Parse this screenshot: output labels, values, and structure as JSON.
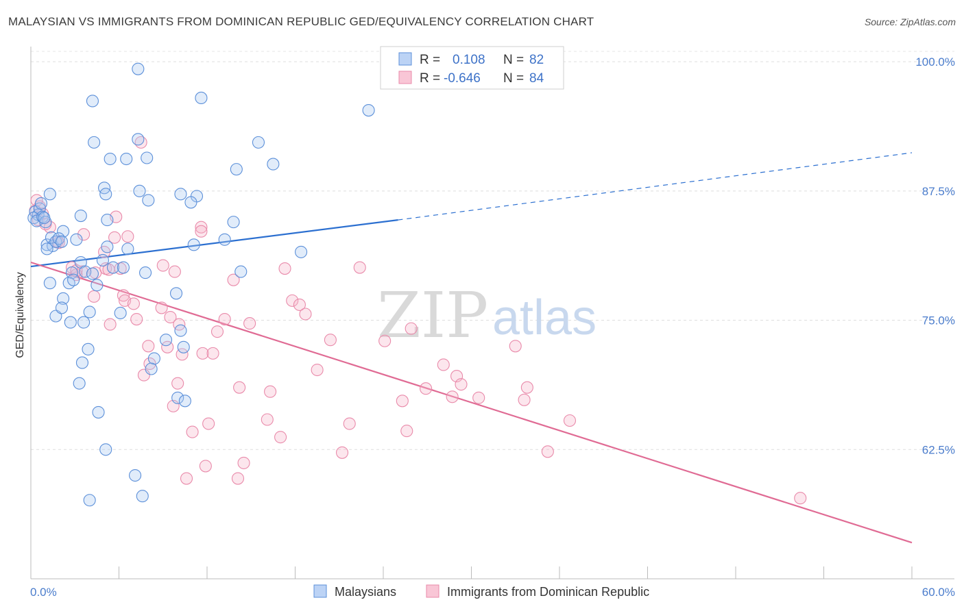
{
  "title": "MALAYSIAN VS IMMIGRANTS FROM DOMINICAN REPUBLIC GED/EQUIVALENCY CORRELATION CHART",
  "source": "Source: ZipAtlas.com",
  "watermark": {
    "part1": "ZIP",
    "part2": "atlas"
  },
  "colors": {
    "blue": "#5b8fd9",
    "blue_line": "#2b6fd0",
    "pink": "#e98aaa",
    "pink_line": "#e06b94",
    "tick": "#4a7ccc"
  },
  "legend": {
    "rows": [
      {
        "r_label": "R =",
        "r_value": "0.108",
        "n_label": "N =",
        "n_value": "82"
      },
      {
        "r_label": "R =",
        "r_value": "-0.646",
        "n_label": "N =",
        "n_value": "84"
      }
    ]
  },
  "bottom_legend": [
    "Malaysians",
    "Immigrants from Dominican Republic"
  ],
  "chart_data": {
    "type": "scatter",
    "title": "MALAYSIAN VS IMMIGRANTS FROM DOMINICAN REPUBLIC GED/EQUIVALENCY CORRELATION CHART",
    "xlabel": "",
    "ylabel": "GED/Equivalency",
    "xlim": [
      0,
      60
    ],
    "ylim": [
      50,
      101
    ],
    "x_tick_labels": [
      "0.0%",
      "60.0%"
    ],
    "y_ticks": [
      62.5,
      75.0,
      87.5,
      100.0
    ],
    "y_tick_labels": [
      "62.5%",
      "75.0%",
      "87.5%",
      "100.0%"
    ],
    "grid": true,
    "legend_position": "top-center",
    "series": [
      {
        "name": "Malaysians",
        "R": 0.108,
        "N": 82,
        "trend": {
          "x0": 0,
          "y0": 80.2,
          "x1": 25,
          "y1": 84.7,
          "dashed_to_x": 60,
          "dashed_to_y": 91.2
        },
        "points": [
          [
            0.3,
            85.5
          ],
          [
            0.5,
            85.2
          ],
          [
            0.2,
            84.9
          ],
          [
            0.6,
            85.8
          ],
          [
            0.4,
            84.6
          ],
          [
            0.8,
            85.0
          ],
          [
            1.0,
            84.5
          ],
          [
            0.9,
            84.9
          ],
          [
            0.7,
            86.3
          ],
          [
            1.3,
            87.2
          ],
          [
            1.1,
            82.3
          ],
          [
            1.5,
            82.2
          ],
          [
            2.2,
            83.6
          ],
          [
            1.4,
            83.0
          ],
          [
            1.7,
            82.6
          ],
          [
            3.1,
            82.8
          ],
          [
            5.2,
            82.1
          ],
          [
            6.6,
            81.9
          ],
          [
            3.4,
            80.6
          ],
          [
            4.9,
            80.8
          ],
          [
            3.7,
            79.7
          ],
          [
            2.8,
            79.6
          ],
          [
            4.2,
            79.5
          ],
          [
            5.6,
            80.1
          ],
          [
            6.3,
            80.1
          ],
          [
            7.8,
            79.6
          ],
          [
            1.3,
            78.6
          ],
          [
            2.6,
            78.6
          ],
          [
            2.9,
            78.9
          ],
          [
            4.5,
            78.4
          ],
          [
            2.2,
            77.1
          ],
          [
            6.1,
            75.7
          ],
          [
            9.9,
            77.6
          ],
          [
            4.0,
            75.8
          ],
          [
            3.6,
            74.8
          ],
          [
            2.7,
            74.8
          ],
          [
            1.7,
            75.4
          ],
          [
            2.1,
            76.2
          ],
          [
            3.9,
            72.2
          ],
          [
            9.2,
            73.1
          ],
          [
            10.2,
            74.0
          ],
          [
            10.4,
            72.4
          ],
          [
            8.4,
            71.3
          ],
          [
            8.2,
            70.3
          ],
          [
            3.5,
            70.9
          ],
          [
            1.1,
            81.9
          ],
          [
            3.3,
            68.9
          ],
          [
            4.6,
            66.1
          ],
          [
            10.0,
            67.5
          ],
          [
            10.5,
            67.2
          ],
          [
            5.1,
            62.5
          ],
          [
            7.1,
            60.0
          ],
          [
            7.6,
            58.0
          ],
          [
            4.0,
            57.6
          ],
          [
            7.3,
            99.3
          ],
          [
            11.6,
            96.5
          ],
          [
            4.2,
            96.2
          ],
          [
            23.0,
            95.3
          ],
          [
            4.3,
            92.2
          ],
          [
            7.3,
            92.5
          ],
          [
            15.5,
            92.2
          ],
          [
            5.4,
            90.6
          ],
          [
            7.9,
            90.7
          ],
          [
            6.5,
            90.6
          ],
          [
            16.5,
            90.1
          ],
          [
            14.0,
            89.6
          ],
          [
            5.0,
            87.8
          ],
          [
            7.4,
            87.5
          ],
          [
            5.1,
            87.2
          ],
          [
            10.2,
            87.2
          ],
          [
            11.3,
            87.0
          ],
          [
            8.0,
            86.6
          ],
          [
            10.9,
            86.4
          ],
          [
            13.8,
            84.5
          ],
          [
            1.9,
            82.9
          ],
          [
            5.2,
            84.7
          ],
          [
            11.1,
            82.3
          ],
          [
            13.2,
            82.8
          ],
          [
            18.4,
            81.6
          ],
          [
            2.1,
            82.6
          ],
          [
            3.4,
            85.1
          ],
          [
            14.3,
            79.7
          ]
        ]
      },
      {
        "name": "Immigrants from Dominican Republic",
        "R": -0.646,
        "N": 84,
        "trend": {
          "x0": 0,
          "y0": 80.6,
          "x1": 60,
          "y1": 53.5
        },
        "points": [
          [
            0.3,
            85.6
          ],
          [
            0.6,
            86.0
          ],
          [
            0.8,
            85.3
          ],
          [
            0.5,
            84.7
          ],
          [
            0.4,
            86.6
          ],
          [
            1.3,
            84.0
          ],
          [
            1.8,
            82.6
          ],
          [
            1.9,
            82.5
          ],
          [
            1.0,
            84.3
          ],
          [
            3.6,
            83.3
          ],
          [
            5.7,
            83.0
          ],
          [
            6.6,
            83.1
          ],
          [
            5.8,
            85.0
          ],
          [
            11.6,
            84.0
          ],
          [
            11.6,
            83.6
          ],
          [
            7.5,
            92.2
          ],
          [
            2.8,
            80.1
          ],
          [
            3.5,
            79.7
          ],
          [
            3.1,
            79.4
          ],
          [
            4.4,
            79.6
          ],
          [
            5.0,
            81.6
          ],
          [
            5.1,
            80.0
          ],
          [
            5.3,
            79.9
          ],
          [
            6.1,
            80.0
          ],
          [
            3.1,
            79.8
          ],
          [
            9.0,
            80.3
          ],
          [
            9.8,
            79.7
          ],
          [
            13.8,
            78.9
          ],
          [
            17.3,
            80.0
          ],
          [
            22.4,
            80.1
          ],
          [
            4.3,
            77.3
          ],
          [
            6.3,
            77.4
          ],
          [
            6.4,
            76.9
          ],
          [
            7.0,
            76.6
          ],
          [
            8.9,
            76.2
          ],
          [
            17.8,
            76.9
          ],
          [
            18.3,
            76.5
          ],
          [
            18.7,
            75.6
          ],
          [
            9.5,
            75.3
          ],
          [
            7.2,
            75.1
          ],
          [
            5.4,
            74.6
          ],
          [
            10.1,
            74.6
          ],
          [
            13.2,
            75.1
          ],
          [
            14.9,
            74.7
          ],
          [
            12.7,
            73.9
          ],
          [
            20.4,
            73.1
          ],
          [
            24.1,
            73.0
          ],
          [
            25.9,
            74.2
          ],
          [
            33.0,
            72.5
          ],
          [
            8.0,
            72.5
          ],
          [
            9.3,
            72.4
          ],
          [
            10.3,
            71.7
          ],
          [
            11.7,
            71.8
          ],
          [
            12.4,
            71.8
          ],
          [
            19.5,
            70.2
          ],
          [
            28.1,
            70.7
          ],
          [
            8.1,
            70.8
          ],
          [
            7.7,
            69.7
          ],
          [
            29.0,
            69.6
          ],
          [
            10.0,
            68.9
          ],
          [
            14.2,
            68.5
          ],
          [
            16.3,
            68.1
          ],
          [
            26.9,
            68.4
          ],
          [
            29.3,
            68.8
          ],
          [
            33.8,
            68.5
          ],
          [
            28.7,
            67.6
          ],
          [
            25.3,
            67.2
          ],
          [
            30.5,
            67.5
          ],
          [
            33.6,
            67.3
          ],
          [
            9.7,
            66.7
          ],
          [
            16.1,
            65.4
          ],
          [
            12.1,
            65.0
          ],
          [
            21.7,
            65.0
          ],
          [
            36.7,
            65.3
          ],
          [
            11.0,
            64.2
          ],
          [
            17.0,
            63.7
          ],
          [
            25.6,
            64.3
          ],
          [
            21.2,
            62.2
          ],
          [
            35.2,
            62.3
          ],
          [
            14.5,
            61.2
          ],
          [
            11.9,
            60.9
          ],
          [
            14.1,
            59.7
          ],
          [
            10.6,
            59.7
          ],
          [
            52.4,
            57.8
          ]
        ]
      }
    ]
  }
}
